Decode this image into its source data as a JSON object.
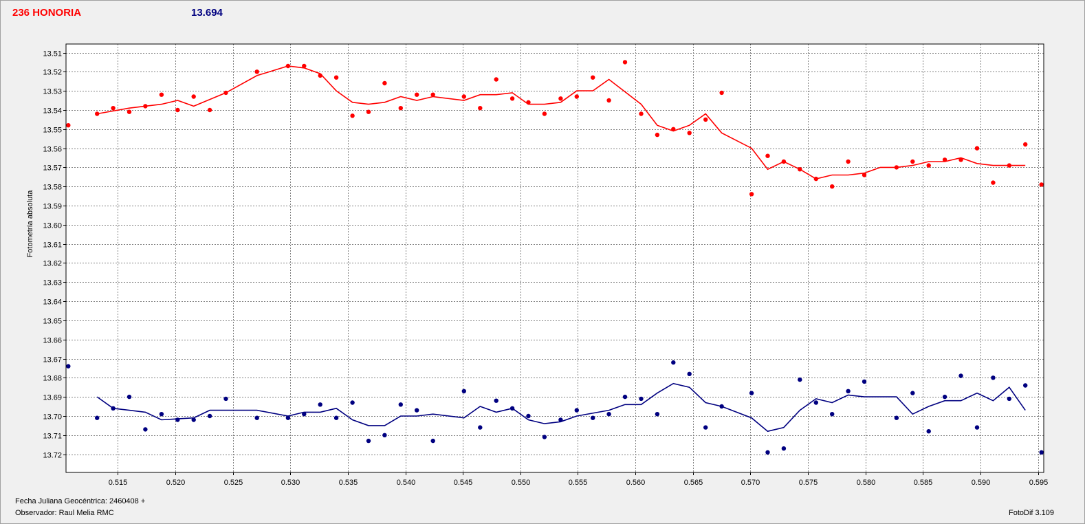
{
  "header": {
    "object_name": "236 HONORIA",
    "magnitude": "13.694"
  },
  "footer": {
    "date_label": "Fecha Juliana Geocéntrica: 2460408 +",
    "observer": "Observador: Raul Melia RMC",
    "software": "FotoDif 3.109"
  },
  "colors": {
    "series_red": "#ff0000",
    "series_blue": "#000080",
    "grid": "#808080",
    "plot_bg": "#ffffff"
  },
  "chart_data": {
    "type": "scatter",
    "title": "",
    "xlabel": "",
    "ylabel": "Fotometría absoluta",
    "xlim": [
      0.5105,
      0.5955
    ],
    "ylim": [
      13.5055,
      13.7295
    ],
    "y_inverted": true,
    "grid": true,
    "x_ticks": [
      0.515,
      0.52,
      0.525,
      0.53,
      0.535,
      0.54,
      0.545,
      0.55,
      0.555,
      0.56,
      0.565,
      0.57,
      0.575,
      0.58,
      0.585,
      0.59,
      0.595
    ],
    "x_tick_labels": [
      "0.515",
      "0.520",
      "0.525",
      "0.530",
      "0.535",
      "0.540",
      "0.545",
      "0.550",
      "0.555",
      "0.560",
      "0.565",
      "0.570",
      "0.575",
      "0.580",
      "0.585",
      "0.590",
      "0.595"
    ],
    "y_ticks": [
      13.51,
      13.52,
      13.53,
      13.54,
      13.55,
      13.56,
      13.57,
      13.58,
      13.59,
      13.6,
      13.61,
      13.62,
      13.63,
      13.64,
      13.65,
      13.66,
      13.67,
      13.68,
      13.69,
      13.7,
      13.71,
      13.72
    ],
    "y_tick_labels": [
      "13.51",
      "13.52",
      "13.53",
      "13.54",
      "13.55",
      "13.56",
      "13.57",
      "13.58",
      "13.59",
      "13.60",
      "13.61",
      "13.62",
      "13.63",
      "13.64",
      "13.65",
      "13.66",
      "13.67",
      "13.68",
      "13.69",
      "13.70",
      "13.71",
      "13.72"
    ],
    "series": [
      {
        "color": "#ff0000",
        "points": [
          [
            0.5107,
            13.548
          ],
          [
            0.5132,
            13.542
          ],
          [
            0.5146,
            13.539
          ],
          [
            0.516,
            13.541
          ],
          [
            0.5174,
            13.538
          ],
          [
            0.5188,
            13.532
          ],
          [
            0.5202,
            13.54
          ],
          [
            0.5216,
            13.533
          ],
          [
            0.523,
            13.54
          ],
          [
            0.5244,
            13.531
          ],
          [
            0.5271,
            13.52
          ],
          [
            0.5298,
            13.517
          ],
          [
            0.5312,
            13.517
          ],
          [
            0.5326,
            13.522
          ],
          [
            0.534,
            13.523
          ],
          [
            0.5354,
            13.543
          ],
          [
            0.5368,
            13.541
          ],
          [
            0.5382,
            13.526
          ],
          [
            0.5396,
            13.539
          ],
          [
            0.541,
            13.532
          ],
          [
            0.5424,
            13.532
          ],
          [
            0.5451,
            13.533
          ],
          [
            0.5465,
            13.539
          ],
          [
            0.5479,
            13.524
          ],
          [
            0.5493,
            13.534
          ],
          [
            0.5507,
            13.536
          ],
          [
            0.5521,
            13.542
          ],
          [
            0.5535,
            13.534
          ],
          [
            0.5549,
            13.533
          ],
          [
            0.5563,
            13.523
          ],
          [
            0.5577,
            13.535
          ],
          [
            0.5591,
            13.515
          ],
          [
            0.5605,
            13.542
          ],
          [
            0.5619,
            13.553
          ],
          [
            0.5633,
            13.55
          ],
          [
            0.5647,
            13.552
          ],
          [
            0.5661,
            13.545
          ],
          [
            0.5675,
            13.531
          ],
          [
            0.5701,
            13.584
          ],
          [
            0.5715,
            13.564
          ],
          [
            0.5729,
            13.567
          ],
          [
            0.5743,
            13.571
          ],
          [
            0.5757,
            13.576
          ],
          [
            0.5771,
            13.58
          ],
          [
            0.5785,
            13.567
          ],
          [
            0.5799,
            13.574
          ],
          [
            0.5827,
            13.57
          ],
          [
            0.5841,
            13.567
          ],
          [
            0.5855,
            13.569
          ],
          [
            0.5869,
            13.566
          ],
          [
            0.5883,
            13.566
          ],
          [
            0.5897,
            13.56
          ],
          [
            0.5911,
            13.578
          ],
          [
            0.5925,
            13.569
          ],
          [
            0.5939,
            13.558
          ],
          [
            0.5953,
            13.579
          ]
        ],
        "trend": [
          [
            0.5132,
            13.542
          ],
          [
            0.516,
            13.539
          ],
          [
            0.5188,
            13.537
          ],
          [
            0.5202,
            13.535
          ],
          [
            0.5216,
            13.538
          ],
          [
            0.5244,
            13.531
          ],
          [
            0.5271,
            13.522
          ],
          [
            0.5298,
            13.517
          ],
          [
            0.5312,
            13.518
          ],
          [
            0.5326,
            13.521
          ],
          [
            0.534,
            13.53
          ],
          [
            0.5354,
            13.536
          ],
          [
            0.5368,
            13.537
          ],
          [
            0.5382,
            13.536
          ],
          [
            0.5396,
            13.533
          ],
          [
            0.541,
            13.535
          ],
          [
            0.5424,
            13.533
          ],
          [
            0.5451,
            13.535
          ],
          [
            0.5465,
            13.532
          ],
          [
            0.5479,
            13.532
          ],
          [
            0.5493,
            13.531
          ],
          [
            0.5507,
            13.537
          ],
          [
            0.5521,
            13.537
          ],
          [
            0.5535,
            13.536
          ],
          [
            0.5549,
            13.53
          ],
          [
            0.5563,
            13.53
          ],
          [
            0.5577,
            13.524
          ],
          [
            0.5605,
            13.537
          ],
          [
            0.5619,
            13.548
          ],
          [
            0.5633,
            13.551
          ],
          [
            0.5647,
            13.548
          ],
          [
            0.5661,
            13.542
          ],
          [
            0.5675,
            13.552
          ],
          [
            0.5701,
            13.56
          ],
          [
            0.5715,
            13.571
          ],
          [
            0.5729,
            13.567
          ],
          [
            0.5743,
            13.571
          ],
          [
            0.5757,
            13.576
          ],
          [
            0.5771,
            13.574
          ],
          [
            0.5785,
            13.574
          ],
          [
            0.5799,
            13.573
          ],
          [
            0.5813,
            13.57
          ],
          [
            0.5827,
            13.57
          ],
          [
            0.5841,
            13.569
          ],
          [
            0.5855,
            13.567
          ],
          [
            0.5869,
            13.567
          ],
          [
            0.5883,
            13.565
          ],
          [
            0.5897,
            13.568
          ],
          [
            0.5911,
            13.569
          ],
          [
            0.5925,
            13.569
          ],
          [
            0.5939,
            13.569
          ]
        ]
      },
      {
        "color": "#000080",
        "points": [
          [
            0.5107,
            13.674
          ],
          [
            0.5132,
            13.701
          ],
          [
            0.5146,
            13.696
          ],
          [
            0.516,
            13.69
          ],
          [
            0.5174,
            13.707
          ],
          [
            0.5188,
            13.699
          ],
          [
            0.5202,
            13.702
          ],
          [
            0.5216,
            13.702
          ],
          [
            0.523,
            13.7
          ],
          [
            0.5244,
            13.691
          ],
          [
            0.5271,
            13.701
          ],
          [
            0.5298,
            13.701
          ],
          [
            0.5312,
            13.699
          ],
          [
            0.5326,
            13.694
          ],
          [
            0.534,
            13.701
          ],
          [
            0.5354,
            13.693
          ],
          [
            0.5368,
            13.713
          ],
          [
            0.5382,
            13.71
          ],
          [
            0.5396,
            13.694
          ],
          [
            0.541,
            13.697
          ],
          [
            0.5424,
            13.713
          ],
          [
            0.5451,
            13.687
          ],
          [
            0.5465,
            13.706
          ],
          [
            0.5479,
            13.692
          ],
          [
            0.5493,
            13.696
          ],
          [
            0.5507,
            13.7
          ],
          [
            0.5521,
            13.711
          ],
          [
            0.5535,
            13.702
          ],
          [
            0.5549,
            13.697
          ],
          [
            0.5563,
            13.701
          ],
          [
            0.5577,
            13.699
          ],
          [
            0.5591,
            13.69
          ],
          [
            0.5605,
            13.691
          ],
          [
            0.5619,
            13.699
          ],
          [
            0.5633,
            13.672
          ],
          [
            0.5647,
            13.678
          ],
          [
            0.5661,
            13.706
          ],
          [
            0.5675,
            13.695
          ],
          [
            0.5701,
            13.688
          ],
          [
            0.5715,
            13.719
          ],
          [
            0.5729,
            13.717
          ],
          [
            0.5743,
            13.681
          ],
          [
            0.5757,
            13.693
          ],
          [
            0.5771,
            13.699
          ],
          [
            0.5785,
            13.687
          ],
          [
            0.5799,
            13.682
          ],
          [
            0.5827,
            13.701
          ],
          [
            0.5841,
            13.688
          ],
          [
            0.5855,
            13.708
          ],
          [
            0.5869,
            13.69
          ],
          [
            0.5883,
            13.679
          ],
          [
            0.5897,
            13.706
          ],
          [
            0.5911,
            13.68
          ],
          [
            0.5925,
            13.691
          ],
          [
            0.5939,
            13.684
          ],
          [
            0.5953,
            13.719
          ]
        ],
        "trend": [
          [
            0.5132,
            13.69
          ],
          [
            0.5146,
            13.696
          ],
          [
            0.516,
            13.697
          ],
          [
            0.5174,
            13.698
          ],
          [
            0.5188,
            13.702
          ],
          [
            0.5216,
            13.701
          ],
          [
            0.523,
            13.697
          ],
          [
            0.5244,
            13.697
          ],
          [
            0.5271,
            13.697
          ],
          [
            0.5298,
            13.7
          ],
          [
            0.5312,
            13.698
          ],
          [
            0.5326,
            13.698
          ],
          [
            0.534,
            13.696
          ],
          [
            0.5354,
            13.702
          ],
          [
            0.5368,
            13.705
          ],
          [
            0.5382,
            13.705
          ],
          [
            0.5396,
            13.7
          ],
          [
            0.541,
            13.7
          ],
          [
            0.5424,
            13.699
          ],
          [
            0.5451,
            13.701
          ],
          [
            0.5465,
            13.695
          ],
          [
            0.5479,
            13.698
          ],
          [
            0.5493,
            13.696
          ],
          [
            0.5507,
            13.702
          ],
          [
            0.5521,
            13.704
          ],
          [
            0.5535,
            13.703
          ],
          [
            0.5549,
            13.7
          ],
          [
            0.5577,
            13.697
          ],
          [
            0.5591,
            13.694
          ],
          [
            0.5605,
            13.694
          ],
          [
            0.5619,
            13.688
          ],
          [
            0.5633,
            13.683
          ],
          [
            0.5647,
            13.685
          ],
          [
            0.5661,
            13.693
          ],
          [
            0.5675,
            13.695
          ],
          [
            0.5701,
            13.701
          ],
          [
            0.5715,
            13.708
          ],
          [
            0.5729,
            13.706
          ],
          [
            0.5743,
            13.697
          ],
          [
            0.5757,
            13.691
          ],
          [
            0.5771,
            13.693
          ],
          [
            0.5785,
            13.689
          ],
          [
            0.5799,
            13.69
          ],
          [
            0.5827,
            13.69
          ],
          [
            0.5841,
            13.699
          ],
          [
            0.5855,
            13.695
          ],
          [
            0.5869,
            13.692
          ],
          [
            0.5883,
            13.692
          ],
          [
            0.5897,
            13.688
          ],
          [
            0.5911,
            13.692
          ],
          [
            0.5925,
            13.685
          ],
          [
            0.5939,
            13.697
          ]
        ]
      }
    ]
  }
}
